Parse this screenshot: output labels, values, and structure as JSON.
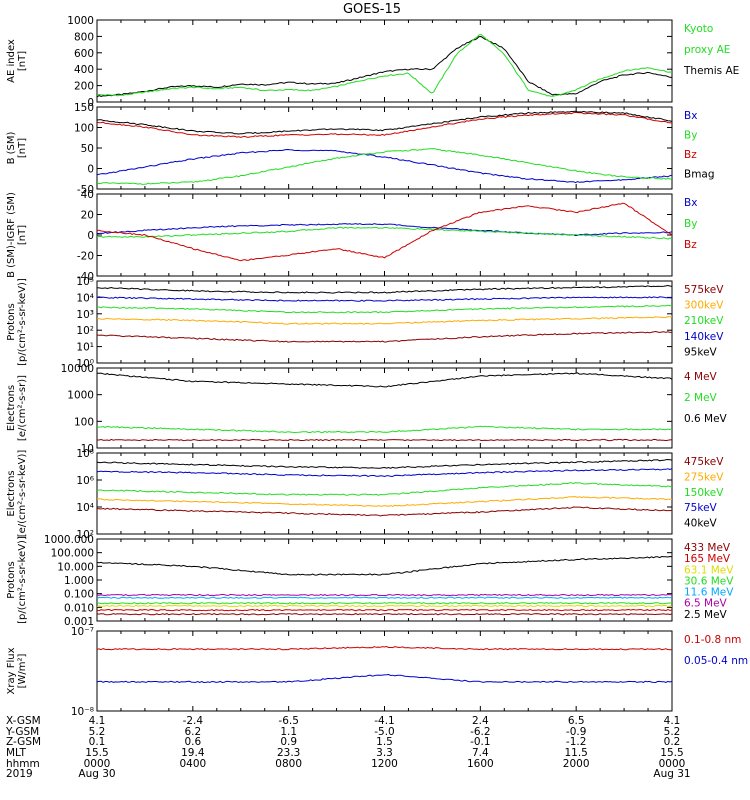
{
  "title": "GOES-15",
  "colors": {
    "black": "#000000",
    "red": "#cc0000",
    "green": "#22dd22",
    "blue": "#0000cc",
    "orange": "#ffaa00",
    "darkred": "#8b0000",
    "yellow": "#dddd00",
    "cyan": "#00aaff",
    "purple": "#aa00aa"
  },
  "panels": [
    {
      "id": "ae",
      "ylabel": [
        "AE index",
        "[nT]"
      ],
      "ticks": [
        "1000",
        "800",
        "600",
        "400",
        "200",
        "0"
      ],
      "legend": [
        {
          "text": "Kyoto",
          "color": "green"
        },
        {
          "text": "proxy AE",
          "color": "green"
        },
        {
          "text": "Themis AE",
          "color": "black"
        }
      ]
    },
    {
      "id": "bsm",
      "ylabel": [
        "B (SM)",
        "[nT]"
      ],
      "ticks": [
        "150",
        "100",
        "50",
        "0",
        "-50"
      ],
      "legend": [
        {
          "text": "Bx",
          "color": "blue"
        },
        {
          "text": "By",
          "color": "green"
        },
        {
          "text": "Bz",
          "color": "red"
        },
        {
          "text": "Bmag",
          "color": "black"
        }
      ]
    },
    {
      "id": "bigrf",
      "ylabel": [
        "B (SM)-IGRF (SM)",
        "[nT]"
      ],
      "ticks": [
        "40",
        "20",
        "0",
        "-20",
        "-40"
      ],
      "legend": [
        {
          "text": "Bx",
          "color": "blue"
        },
        {
          "text": "By",
          "color": "green"
        },
        {
          "text": "Bz",
          "color": "red"
        }
      ]
    },
    {
      "id": "protons1",
      "ylabel": [
        "Protons",
        "[p/(cm²-s-sr-keV)]"
      ],
      "ticks": [
        "10⁵",
        "10⁴",
        "10³",
        "10²",
        "10¹",
        "10⁰"
      ],
      "legend": [
        {
          "text": "575keV",
          "color": "darkred"
        },
        {
          "text": "300keV",
          "color": "orange"
        },
        {
          "text": "210keV",
          "color": "green"
        },
        {
          "text": "140keV",
          "color": "blue"
        },
        {
          "text": "95keV",
          "color": "black"
        }
      ]
    },
    {
      "id": "electrons1",
      "ylabel": [
        "Electrons",
        "[e/(cm²-s-sr)]"
      ],
      "ticks": [
        "10000",
        "1000",
        "100",
        "10"
      ],
      "legend": [
        {
          "text": "4 MeV",
          "color": "darkred"
        },
        {
          "text": "2 MeV",
          "color": "green"
        },
        {
          "text": "0.6 MeV",
          "color": "black"
        }
      ]
    },
    {
      "id": "electrons2",
      "ylabel": [
        "Electrons",
        "[e/(cm²-s-sr-keV)]"
      ],
      "ticks": [
        "10⁸",
        "10⁶",
        "10⁴",
        "10²"
      ],
      "legend": [
        {
          "text": "475keV",
          "color": "darkred"
        },
        {
          "text": "275keV",
          "color": "orange"
        },
        {
          "text": "150keV",
          "color": "green"
        },
        {
          "text": "75keV",
          "color": "blue"
        },
        {
          "text": "40keV",
          "color": "black"
        }
      ]
    },
    {
      "id": "protons2",
      "ylabel": [
        "Protons",
        "[p/(cm²-s-sr-keV)]"
      ],
      "ticks": [
        "1000.000",
        "100.000",
        "10.000",
        "1.000",
        "0.100",
        "0.010",
        "0.001"
      ],
      "legend": [
        {
          "text": "433 MeV",
          "color": "darkred"
        },
        {
          "text": "165 MeV",
          "color": "red"
        },
        {
          "text": "63.1 MeV",
          "color": "yellow"
        },
        {
          "text": "30.6 MeV",
          "color": "green"
        },
        {
          "text": "11.6 MeV",
          "color": "cyan"
        },
        {
          "text": "6.5 MeV",
          "color": "purple"
        },
        {
          "text": "2.5 MeV",
          "color": "black"
        }
      ]
    },
    {
      "id": "xray",
      "ylabel": [
        "Xray Flux",
        "[W/m²]"
      ],
      "ticks": [
        "10⁻⁷",
        "10⁻⁸"
      ],
      "legend": [
        {
          "text": "0.1-0.8 nm",
          "color": "red"
        },
        {
          "text": "0.05-0.4 nm",
          "color": "blue"
        }
      ]
    }
  ],
  "footer": {
    "labels": [
      "X-GSM",
      "Y-GSM",
      "Z-GSM",
      "MLT",
      "hhmm",
      "2019"
    ],
    "columns": [
      [
        "4.1",
        "5.2",
        "0.1",
        "15.5",
        "0000",
        "Aug 30"
      ],
      [
        "-2.4",
        "6.2",
        "0.6",
        "19.4",
        "0400",
        ""
      ],
      [
        "-6.5",
        "1.1",
        "0.9",
        "23.3",
        "0800",
        ""
      ],
      [
        "-4.1",
        "-5.0",
        "1.5",
        "3.3",
        "1200",
        ""
      ],
      [
        "2.4",
        "-6.2",
        "-0.1",
        "7.4",
        "1600",
        ""
      ],
      [
        "6.5",
        "-0.9",
        "-1.2",
        "11.5",
        "2000",
        ""
      ],
      [
        "4.1",
        "5.2",
        "0.2",
        "15.5",
        "0000",
        "Aug 31"
      ]
    ]
  },
  "chart_data": [
    {
      "type": "line",
      "title": "GOES-15",
      "ylabel": "AE index [nT]",
      "ylim": [
        0,
        1000
      ],
      "x_hours": [
        0,
        1,
        2,
        3,
        4,
        5,
        6,
        7,
        8,
        9,
        10,
        11,
        12,
        13,
        14,
        15,
        16,
        17,
        18,
        19,
        20,
        21,
        22,
        23,
        24
      ],
      "series": [
        {
          "name": "Themis AE",
          "color": "black",
          "values": [
            70,
            90,
            130,
            180,
            200,
            180,
            220,
            210,
            240,
            220,
            230,
            300,
            370,
            400,
            400,
            650,
            800,
            650,
            250,
            90,
            100,
            250,
            330,
            360,
            300
          ]
        },
        {
          "name": "Kyoto proxy AE",
          "color": "green",
          "values": [
            90,
            80,
            120,
            160,
            180,
            160,
            180,
            140,
            150,
            140,
            190,
            260,
            320,
            350,
            100,
            580,
            830,
            580,
            150,
            60,
            150,
            280,
            380,
            420,
            360
          ]
        }
      ]
    },
    {
      "type": "line",
      "ylabel": "B (SM) [nT]",
      "ylim": [
        -55,
        150
      ],
      "x_hours": [
        0,
        2,
        4,
        6,
        8,
        10,
        12,
        14,
        16,
        18,
        20,
        22,
        24
      ],
      "series": [
        {
          "name": "Bx",
          "color": "blue",
          "values": [
            -20,
            0,
            20,
            35,
            43,
            40,
            25,
            5,
            -15,
            -30,
            -38,
            -32,
            -22
          ]
        },
        {
          "name": "By",
          "color": "green",
          "values": [
            -40,
            -42,
            -38,
            -22,
            0,
            22,
            38,
            45,
            30,
            10,
            -10,
            -25,
            -30
          ]
        },
        {
          "name": "Bz",
          "color": "red",
          "values": [
            112,
            100,
            80,
            75,
            80,
            82,
            80,
            100,
            120,
            130,
            135,
            130,
            110
          ]
        },
        {
          "name": "Bmag",
          "color": "black",
          "values": [
            118,
            106,
            90,
            83,
            90,
            95,
            92,
            108,
            125,
            135,
            138,
            135,
            115
          ]
        }
      ]
    },
    {
      "type": "line",
      "ylabel": "B (SM)-IGRF (SM) [nT]",
      "ylim": [
        -45,
        45
      ],
      "x_hours": [
        0,
        2,
        4,
        6,
        8,
        10,
        12,
        14,
        16,
        18,
        20,
        22,
        24
      ],
      "series": [
        {
          "name": "Bx",
          "color": "blue",
          "values": [
            2,
            5,
            8,
            10,
            11,
            12,
            12,
            8,
            5,
            2,
            0,
            2,
            3
          ]
        },
        {
          "name": "By",
          "color": "green",
          "values": [
            -2,
            -2,
            0,
            2,
            4,
            8,
            8,
            6,
            4,
            2,
            0,
            -2,
            -4
          ]
        },
        {
          "name": "Bz",
          "color": "red",
          "values": [
            5,
            0,
            -15,
            -28,
            -22,
            -15,
            -25,
            5,
            25,
            32,
            25,
            35,
            0
          ]
        }
      ]
    },
    {
      "type": "line",
      "ylabel": "Protons [p/(cm²-s-sr-keV)] (log10)",
      "ylim": [
        0,
        5
      ],
      "x_hours": [
        0,
        4,
        8,
        12,
        16,
        20,
        24
      ],
      "series": [
        {
          "name": "95keV",
          "color": "black",
          "values": [
            4.6,
            4.4,
            4.3,
            4.3,
            4.5,
            4.6,
            4.7
          ]
        },
        {
          "name": "140keV",
          "color": "blue",
          "values": [
            4.0,
            3.9,
            3.8,
            3.8,
            3.9,
            4.0,
            4.0
          ]
        },
        {
          "name": "210keV",
          "color": "green",
          "values": [
            3.4,
            3.3,
            3.1,
            3.1,
            3.3,
            3.4,
            3.5
          ]
        },
        {
          "name": "300keV",
          "color": "orange",
          "values": [
            2.7,
            2.6,
            2.4,
            2.4,
            2.6,
            2.7,
            2.8
          ]
        },
        {
          "name": "575keV",
          "color": "darkred",
          "values": [
            1.7,
            1.5,
            1.3,
            1.3,
            1.6,
            1.8,
            1.9
          ]
        }
      ]
    },
    {
      "type": "line",
      "ylabel": "Electrons [e/(cm²-s-sr)] (log10)",
      "ylim": [
        1,
        4
      ],
      "x_hours": [
        0,
        4,
        8,
        12,
        16,
        20,
        24
      ],
      "series": [
        {
          "name": "0.6 MeV",
          "color": "black",
          "values": [
            3.8,
            3.5,
            3.4,
            3.3,
            3.7,
            3.8,
            3.6
          ]
        },
        {
          "name": "2 MeV",
          "color": "green",
          "values": [
            1.8,
            1.7,
            1.6,
            1.6,
            1.8,
            1.7,
            1.7
          ]
        },
        {
          "name": "4 MeV",
          "color": "darkred",
          "values": [
            1.3,
            1.3,
            1.3,
            1.3,
            1.3,
            1.3,
            1.3
          ]
        }
      ]
    },
    {
      "type": "line",
      "ylabel": "Electrons [e/(cm²-s-sr-keV)] (log10)",
      "ylim": [
        2,
        9
      ],
      "x_hours": [
        0,
        4,
        8,
        12,
        16,
        20,
        24
      ],
      "series": [
        {
          "name": "40keV",
          "color": "black",
          "values": [
            8.2,
            8.0,
            7.8,
            7.7,
            8.0,
            8.2,
            8.4
          ]
        },
        {
          "name": "75keV",
          "color": "blue",
          "values": [
            7.4,
            7.3,
            7.1,
            7.0,
            7.3,
            7.5,
            7.6
          ]
        },
        {
          "name": "150keV",
          "color": "green",
          "values": [
            5.8,
            5.6,
            5.4,
            5.4,
            6.0,
            6.4,
            6.1
          ]
        },
        {
          "name": "275keV",
          "color": "orange",
          "values": [
            5.0,
            4.8,
            4.6,
            4.4,
            4.8,
            5.2,
            5.0
          ]
        },
        {
          "name": "475keV",
          "color": "darkred",
          "values": [
            4.2,
            4.0,
            3.8,
            3.6,
            3.9,
            4.3,
            4.0
          ]
        }
      ]
    },
    {
      "type": "line",
      "ylabel": "Protons [p/(cm²-s-sr-keV)] (log10)",
      "ylim": [
        -3,
        3
      ],
      "x_hours": [
        0,
        4,
        8,
        12,
        16,
        20,
        24
      ],
      "series": [
        {
          "name": "2.5 MeV",
          "color": "black",
          "values": [
            1.3,
            1.0,
            0.4,
            0.4,
            1.2,
            1.5,
            1.7
          ]
        },
        {
          "name": "6.5 MeV",
          "color": "purple",
          "values": [
            -1.1,
            -1.1,
            -1.1,
            -1.1,
            -1.1,
            -1.1,
            -1.1
          ]
        },
        {
          "name": "11.6 MeV",
          "color": "cyan",
          "values": [
            -1.3,
            -1.3,
            -1.3,
            -1.3,
            -1.3,
            -1.3,
            -1.3
          ]
        },
        {
          "name": "30.6 MeV",
          "color": "green",
          "values": [
            -1.7,
            -1.7,
            -1.7,
            -1.7,
            -1.7,
            -1.7,
            -1.7
          ]
        },
        {
          "name": "63.1 MeV",
          "color": "yellow",
          "values": [
            -1.9,
            -1.9,
            -1.9,
            -1.9,
            -1.9,
            -1.9,
            -1.9
          ]
        },
        {
          "name": "165 MeV",
          "color": "red",
          "values": [
            -2.2,
            -2.2,
            -2.2,
            -2.2,
            -2.2,
            -2.2,
            -2.2
          ]
        },
        {
          "name": "433 MeV",
          "color": "darkred",
          "values": [
            -2.5,
            -2.5,
            -2.5,
            -2.5,
            -2.5,
            -2.5,
            -2.5
          ]
        }
      ]
    },
    {
      "type": "line",
      "ylabel": "Xray Flux [W/m²] (log10)",
      "ylim": [
        -8.1,
        -7
      ],
      "x_hours": [
        0,
        4,
        8,
        12,
        16,
        20,
        24
      ],
      "series": [
        {
          "name": "0.1-0.8 nm",
          "color": "red",
          "values": [
            -7.25,
            -7.25,
            -7.25,
            -7.22,
            -7.25,
            -7.25,
            -7.25
          ]
        },
        {
          "name": "0.05-0.4 nm",
          "color": "blue",
          "values": [
            -7.7,
            -7.7,
            -7.7,
            -7.6,
            -7.7,
            -7.7,
            -7.7
          ]
        }
      ]
    }
  ]
}
